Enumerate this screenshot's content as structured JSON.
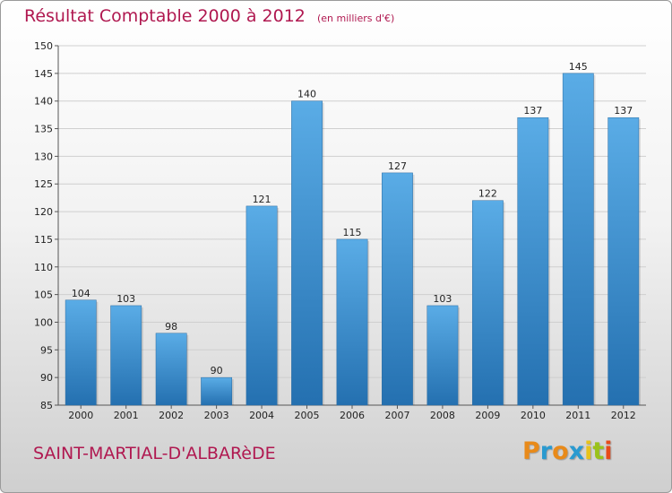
{
  "chart_data": {
    "type": "bar",
    "title": "Résultat Comptable 2000 à 2012",
    "subtitle": "(en milliers d'€)",
    "categories": [
      "2000",
      "2001",
      "2002",
      "2003",
      "2004",
      "2005",
      "2006",
      "2007",
      "2008",
      "2009",
      "2010",
      "2011",
      "2012"
    ],
    "values": [
      104,
      103,
      98,
      90,
      121,
      140,
      115,
      127,
      103,
      122,
      137,
      145,
      137
    ],
    "ylim": [
      85,
      150
    ],
    "yticks": [
      85,
      90,
      95,
      100,
      105,
      110,
      115,
      120,
      125,
      130,
      135,
      140,
      145,
      150
    ],
    "grid": true,
    "bar_color_top": "#5aace6",
    "bar_color_bottom": "#2470b0",
    "title_color": "#b01850"
  },
  "footer": {
    "commune": "SAINT-MARTIAL-D'ALBARèDE",
    "logo_text": "Proxiti",
    "logo_colors": [
      "#e88a1a",
      "#2a9ad0",
      "#e88a1a",
      "#2a9ad0",
      "#e8c21a",
      "#9ac21a",
      "#e84a1a"
    ]
  }
}
